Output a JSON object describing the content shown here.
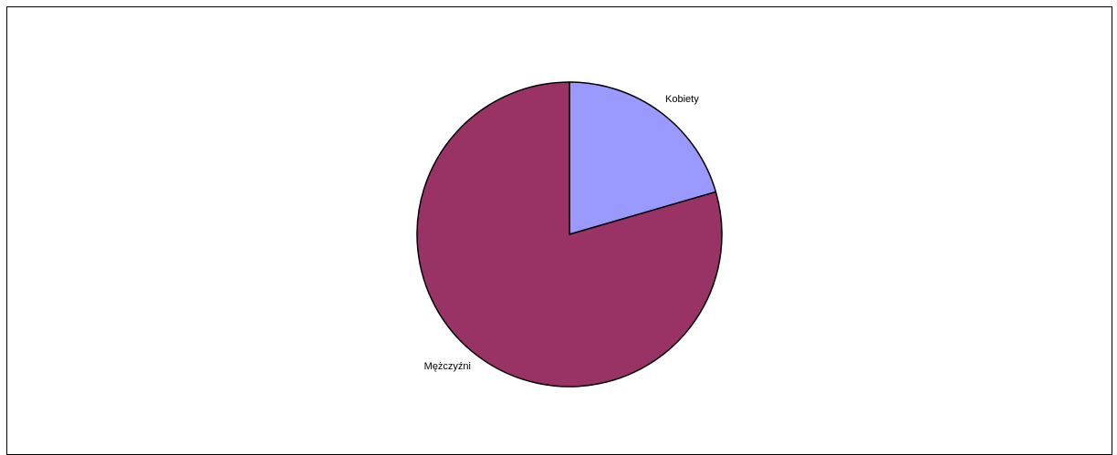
{
  "chart_data": {
    "type": "pie",
    "title": "",
    "categories": [
      "Kobiety",
      "Mężczyźni"
    ],
    "values": [
      20.5,
      79.5
    ],
    "colors": [
      "#9999ff",
      "#993366"
    ],
    "start_angle_deg": 0,
    "direction": "clockwise",
    "legend": "none"
  }
}
